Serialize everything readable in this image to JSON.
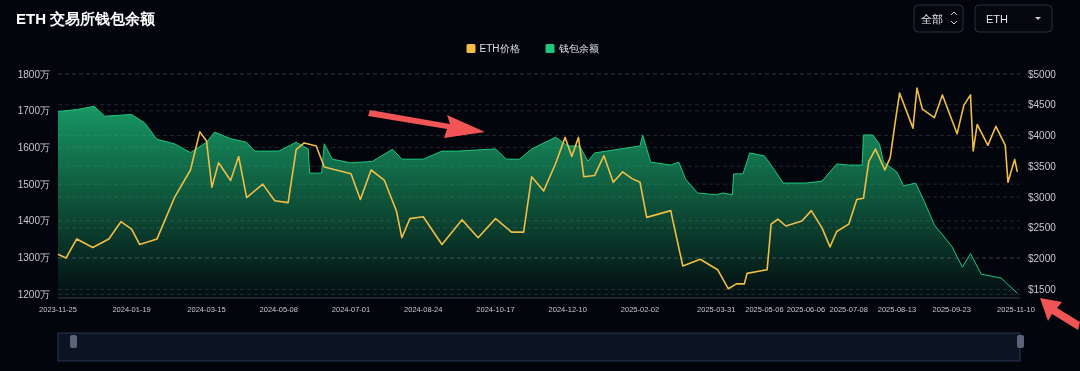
{
  "chart_data": {
    "type": "area",
    "title": "ETH 交易所钱包余额",
    "legend": "top",
    "grid": "y",
    "annotations": [
      "全部",
      "ETH"
    ],
    "xlim": [
      "2023-11-25",
      "2025-11-13"
    ],
    "xticks": [
      "2023-11-25",
      "2024-01-19",
      "2024-03-15",
      "2024-05-08",
      "2024-07-01",
      "2024-08-24",
      "2024-10-17",
      "2024-12-10",
      "2025-02-02",
      "2025-03-31",
      "2025-05-06",
      "2025-06-06",
      "2025-07-08",
      "2025-08-13",
      "2025-09-23",
      "2025-11-10"
    ],
    "ylim": [
      1190,
      1800
    ],
    "yticks": [
      {
        "value": 1200,
        "label": "1200万"
      },
      {
        "value": 1300,
        "label": "1300万"
      },
      {
        "value": 1400,
        "label": "1400万"
      },
      {
        "value": 1500,
        "label": "1500万"
      },
      {
        "value": 1600,
        "label": "1600万"
      },
      {
        "value": 1700,
        "label": "1700万"
      },
      {
        "value": 1800,
        "label": "1800万"
      }
    ],
    "y2lim": [
      1360,
      5000
    ],
    "y2ticks": [
      {
        "value": 1500,
        "label": "$1500"
      },
      {
        "value": 2000,
        "label": "$2000"
      },
      {
        "value": 2500,
        "label": "$2500"
      },
      {
        "value": 3000,
        "label": "$3000"
      },
      {
        "value": 3500,
        "label": "$3500"
      },
      {
        "value": 4000,
        "label": "$4000"
      },
      {
        "value": 4500,
        "label": "$4500"
      },
      {
        "value": 5000,
        "label": "$5000"
      }
    ],
    "series": [
      {
        "name": "ETH价格",
        "type": "line",
        "axis": "y2",
        "color": "#f0bd45",
        "x": [
          "2023-11-25",
          "2023-12-01",
          "2023-12-09",
          "2023-12-21",
          "2024-01-02",
          "2024-01-11",
          "2024-01-19",
          "2024-01-25",
          "2024-02-07",
          "2024-02-20",
          "2024-03-03",
          "2024-03-10",
          "2024-03-15",
          "2024-03-19",
          "2024-03-24",
          "2024-04-02",
          "2024-04-08",
          "2024-04-14",
          "2024-04-26",
          "2024-05-05",
          "2024-05-15",
          "2024-05-21",
          "2024-05-27",
          "2024-06-05",
          "2024-06-11",
          "2024-07-01",
          "2024-07-08",
          "2024-07-16",
          "2024-07-26",
          "2024-08-04",
          "2024-08-08",
          "2024-08-14",
          "2024-08-24",
          "2024-09-07",
          "2024-09-22",
          "2024-10-04",
          "2024-10-17",
          "2024-10-29",
          "2024-11-07",
          "2024-11-13",
          "2024-11-22",
          "2024-12-01",
          "2024-12-08",
          "2024-12-13",
          "2024-12-18",
          "2024-12-22",
          "2024-12-30",
          "2025-01-06",
          "2025-01-13",
          "2025-01-20",
          "2025-01-27",
          "2025-02-02",
          "2025-02-07",
          "2025-02-25",
          "2025-02-26",
          "2025-03-06",
          "2025-03-19",
          "2025-04-01",
          "2025-04-09",
          "2025-04-15",
          "2025-04-21",
          "2025-04-23",
          "2025-05-08",
          "2025-05-11",
          "2025-05-16",
          "2025-05-22",
          "2025-06-03",
          "2025-06-10",
          "2025-06-18",
          "2025-06-24",
          "2025-06-29",
          "2025-07-08",
          "2025-07-14",
          "2025-07-19",
          "2025-07-23",
          "2025-07-28",
          "2025-08-04",
          "2025-08-08",
          "2025-08-12",
          "2025-08-15",
          "2025-08-25",
          "2025-08-28",
          "2025-09-01",
          "2025-09-10",
          "2025-09-16",
          "2025-09-27",
          "2025-10-02",
          "2025-10-07",
          "2025-10-09",
          "2025-10-12",
          "2025-10-20",
          "2025-10-26",
          "2025-11-02",
          "2025-11-04",
          "2025-11-09",
          "2025-11-11"
        ],
        "values": [
          2070,
          2010,
          2320,
          2180,
          2320,
          2600,
          2480,
          2230,
          2320,
          2990,
          3440,
          4060,
          3910,
          3160,
          3560,
          3270,
          3660,
          2990,
          3210,
          2940,
          2910,
          3770,
          3880,
          3830,
          3490,
          3380,
          2960,
          3440,
          3270,
          2770,
          2340,
          2650,
          2680,
          2230,
          2630,
          2340,
          2650,
          2430,
          2430,
          3330,
          3100,
          3550,
          3970,
          3660,
          3970,
          3330,
          3350,
          3670,
          3240,
          3410,
          3300,
          3240,
          2670,
          2780,
          2670,
          1880,
          1990,
          1820,
          1510,
          1590,
          1590,
          1760,
          1820,
          2560,
          2640,
          2530,
          2610,
          2780,
          2500,
          2190,
          2440,
          2560,
          2960,
          2980,
          3580,
          3780,
          3440,
          3640,
          4260,
          4690,
          4120,
          4770,
          4430,
          4290,
          4660,
          4030,
          4490,
          4660,
          3750,
          4180,
          3840,
          4150,
          3840,
          3240,
          3610,
          3410
        ]
      },
      {
        "name": "钱包余额",
        "color": "#1ec77f",
        "x": [
          "2023-11-25",
          "2023-12-09",
          "2023-12-22",
          "2023-12-30",
          "2024-01-19",
          "2024-01-29",
          "2024-02-07",
          "2024-02-20",
          "2024-03-03",
          "2024-03-15",
          "2024-03-21",
          "2024-04-02",
          "2024-04-14",
          "2024-04-20",
          "2024-05-08",
          "2024-05-21",
          "2024-05-30",
          "2024-05-31",
          "2024-06-09",
          "2024-06-11",
          "2024-06-17",
          "2024-07-01",
          "2024-07-17",
          "2024-08-01",
          "2024-08-08",
          "2024-08-24",
          "2024-09-07",
          "2024-09-19",
          "2024-10-17",
          "2024-10-25",
          "2024-11-04",
          "2024-11-13",
          "2024-12-01",
          "2024-12-10",
          "2024-12-19",
          "2024-12-25",
          "2024-12-30",
          "2025-02-02",
          "2025-02-04",
          "2025-02-10",
          "2025-02-25",
          "2025-03-03",
          "2025-03-08",
          "2025-03-17",
          "2025-03-31",
          "2025-04-05",
          "2025-04-12",
          "2025-04-13",
          "2025-04-20",
          "2025-04-25",
          "2025-05-06",
          "2025-05-13",
          "2025-05-20",
          "2025-06-06",
          "2025-06-18",
          "2025-06-29",
          "2025-07-08",
          "2025-07-18",
          "2025-07-19",
          "2025-07-26",
          "2025-07-31",
          "2025-08-03",
          "2025-08-13",
          "2025-08-18",
          "2025-08-27",
          "2025-09-02",
          "2025-09-10",
          "2025-09-23",
          "2025-10-01",
          "2025-10-07",
          "2025-10-15",
          "2025-10-30",
          "2025-11-11"
        ],
        "values": [
          1698,
          1703,
          1712,
          1685,
          1690,
          1666,
          1622,
          1610,
          1586,
          1614,
          1642,
          1624,
          1614,
          1590,
          1590,
          1614,
          1596,
          1530,
          1530,
          1610,
          1568,
          1558,
          1562,
          1595,
          1568,
          1568,
          1590,
          1590,
          1596,
          1568,
          1568,
          1596,
          1628,
          1604,
          1604,
          1562,
          1585,
          1604,
          1634,
          1560,
          1552,
          1560,
          1514,
          1476,
          1471,
          1476,
          1471,
          1528,
          1528,
          1585,
          1577,
          1541,
          1503,
          1503,
          1508,
          1555,
          1552,
          1552,
          1634,
          1634,
          1609,
          1560,
          1533,
          1495,
          1503,
          1457,
          1389,
          1331,
          1274,
          1311,
          1255,
          1244,
          1203
        ]
      }
    ]
  }
}
